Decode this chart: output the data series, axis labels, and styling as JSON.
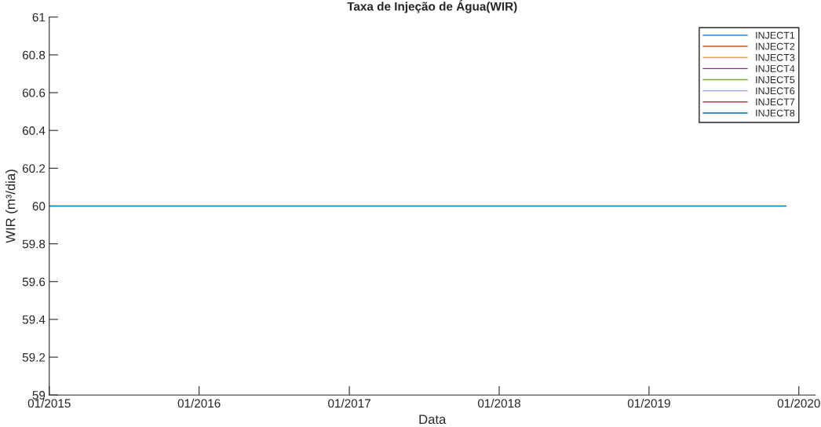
{
  "chart_data": {
    "type": "line",
    "title": "Taxa de Injeção de Água(WIR)",
    "xlabel": "Data",
    "ylabel": "WIR (m³/dia)",
    "x": [
      "2015-01-01",
      "2019-12-01"
    ],
    "series": [
      {
        "name": "INJECT1",
        "color": "#0072bd",
        "values": [
          null,
          null
        ]
      },
      {
        "name": "INJECT2",
        "color": "#d95319",
        "values": [
          null,
          null
        ]
      },
      {
        "name": "INJECT3",
        "color": "#edb120",
        "values": [
          null,
          null
        ]
      },
      {
        "name": "INJECT4",
        "color": "#7e2f8e",
        "values": [
          null,
          null
        ]
      },
      {
        "name": "INJECT5",
        "color": "#77ac30",
        "values": [
          null,
          null
        ]
      },
      {
        "name": "INJECT6",
        "color": "#4dbeee",
        "values": [
          null,
          null
        ]
      },
      {
        "name": "INJECT7",
        "color": "#a2142f",
        "values": [
          null,
          null
        ]
      },
      {
        "name": "INJECT8",
        "color": "#0072bd",
        "values": [
          60,
          60
        ]
      }
    ],
    "xlim": [
      "2015-01-01",
      "2020-02-10"
    ],
    "xticks": [
      {
        "value": "2015-01-01",
        "label": "01/2015"
      },
      {
        "value": "2016-01-01",
        "label": "01/2016"
      },
      {
        "value": "2017-01-01",
        "label": "01/2017"
      },
      {
        "value": "2018-01-01",
        "label": "01/2018"
      },
      {
        "value": "2019-01-01",
        "label": "01/2019"
      },
      {
        "value": "2020-01-01",
        "label": "01/2020"
      }
    ],
    "ylim": [
      59,
      61
    ],
    "yticks": [
      59,
      59.2,
      59.4,
      59.6,
      59.8,
      60,
      60.2,
      60.4,
      60.6,
      60.8,
      61
    ],
    "grid": false,
    "legend": "top right"
  }
}
